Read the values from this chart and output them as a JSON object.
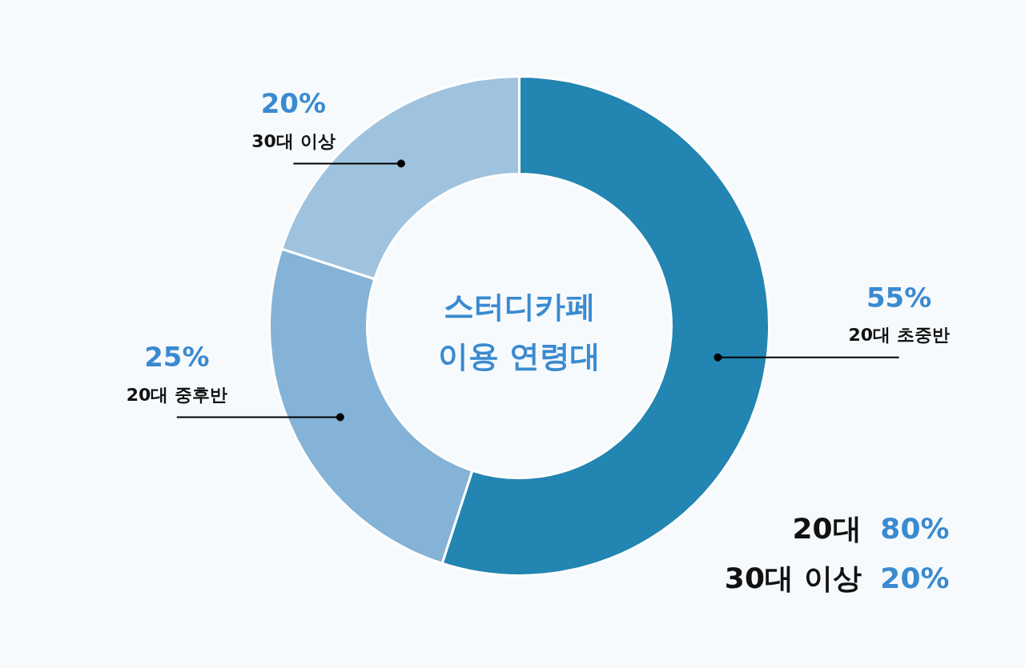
{
  "chart_data": {
    "type": "donut",
    "title": "스터디카페 이용 연령대",
    "categories": [
      "20대 초중반",
      "20대 중후반",
      "30대 이상"
    ],
    "values": [
      55,
      25,
      20
    ],
    "value_labels": [
      "55%",
      "25%",
      "20%"
    ],
    "colors": [
      "#2385b1",
      "#84b3d7",
      "#9fc3df"
    ],
    "annotations": [
      "20대 80%",
      "30대 이상 20%"
    ]
  }
}
